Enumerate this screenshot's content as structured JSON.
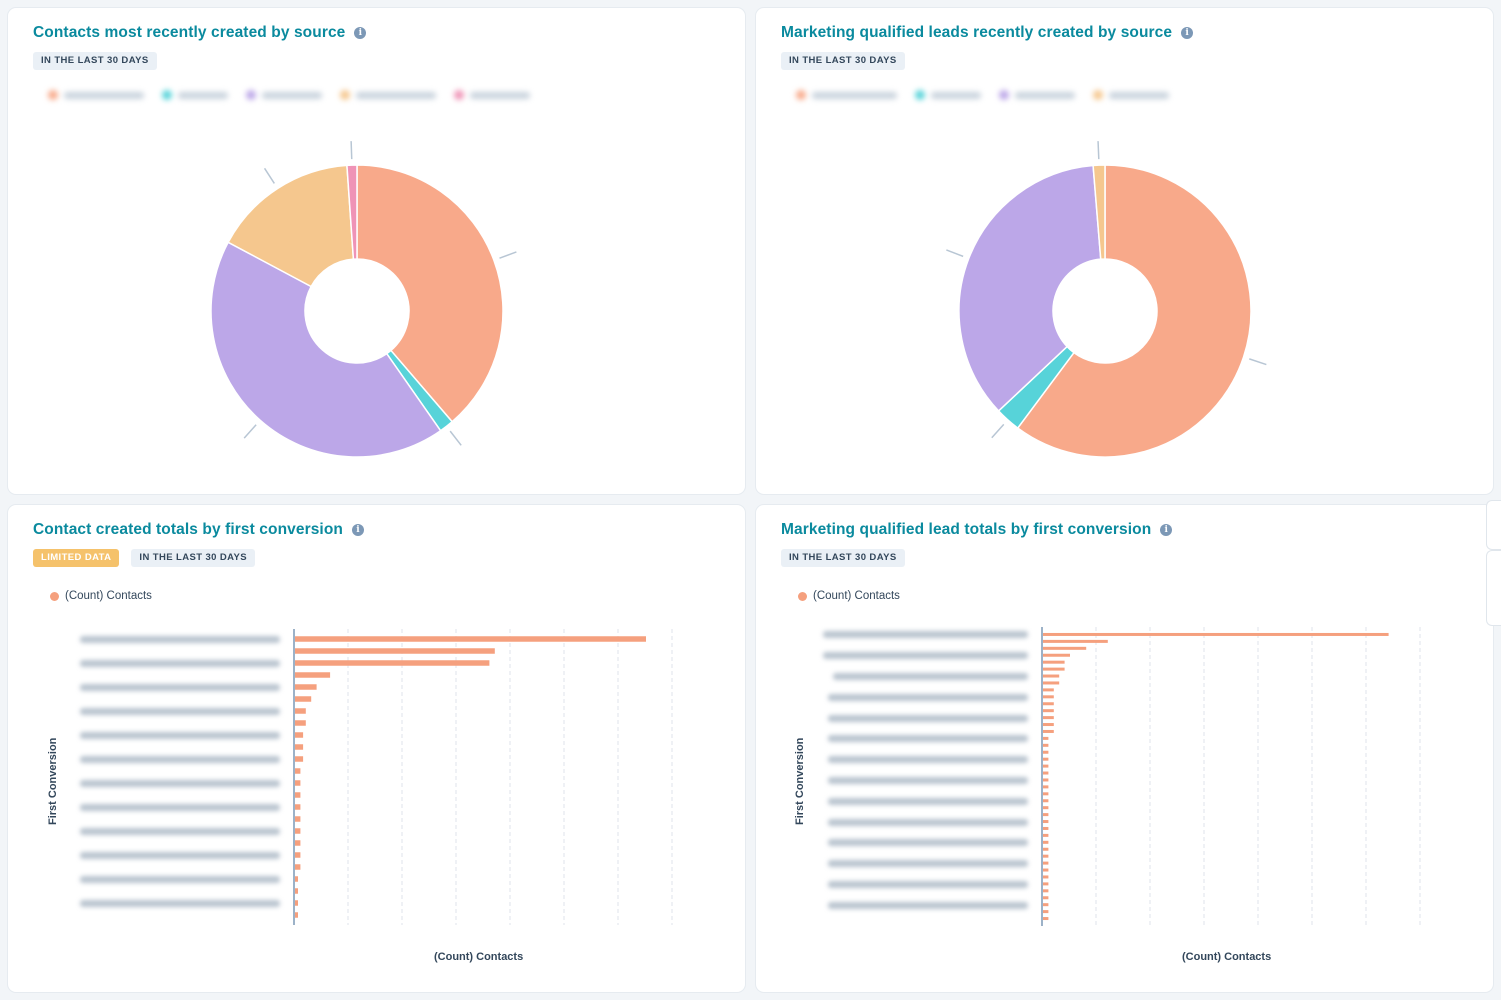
{
  "dashboard": {
    "cards": [
      {
        "title": "Contacts most recently created by source",
        "info_icon": "info-icon",
        "tags": [
          "IN THE LAST 30 DAYS"
        ],
        "chart_data": {
          "type": "pie",
          "donut": true,
          "legend_blurred": true,
          "slices": [
            {
              "value": 38.7,
              "color": "#f8a98a"
            },
            {
              "value": 1.6,
              "color": "#57d3d9"
            },
            {
              "value": 42.5,
              "color": "#bca7e8"
            },
            {
              "value": 16.1,
              "color": "#f5c78e"
            },
            {
              "value": 1.1,
              "color": "#ef93b6"
            }
          ]
        }
      },
      {
        "title": "Marketing qualified leads recently created by source",
        "info_icon": "info-icon",
        "tags": [
          "IN THE LAST 30 DAYS"
        ],
        "chart_data": {
          "type": "pie",
          "donut": true,
          "legend_blurred": true,
          "slices": [
            {
              "value": 60.2,
              "color": "#f8a98a"
            },
            {
              "value": 2.8,
              "color": "#57d3d9"
            },
            {
              "value": 35.7,
              "color": "#bca7e8"
            },
            {
              "value": 1.3,
              "color": "#f5c78e"
            }
          ]
        }
      },
      {
        "title": "Contact created totals by first conversion",
        "info_icon": "info-icon",
        "tags": [
          "LIMITED DATA",
          "IN THE LAST 30 DAYS"
        ],
        "legend": "(Count) Contacts",
        "y_axis_title": "First Conversion",
        "x_axis_title": "(Count) Contacts",
        "chart_data": {
          "type": "bar",
          "orientation": "horizontal",
          "series": [
            {
              "name": "(Count) Contacts",
              "color": "#f5a07e",
              "values": [
                130,
                74,
                72,
                13,
                8,
                6,
                4,
                4,
                3,
                3,
                3,
                2,
                2,
                2,
                2,
                2,
                2,
                2,
                2,
                2,
                1,
                1,
                1,
                1
              ]
            }
          ],
          "category_labels_blurred": true,
          "grid": true,
          "xlim": [
            0,
            140
          ]
        }
      },
      {
        "title": "Marketing qualified lead totals by first conversion",
        "info_icon": "info-icon",
        "tags": [
          "IN THE LAST 30 DAYS"
        ],
        "legend": "(Count) Contacts",
        "y_axis_title": "First Conversion",
        "x_axis_title": "(Count) Contacts",
        "chart_data": {
          "type": "bar",
          "orientation": "horizontal",
          "series": [
            {
              "name": "(Count) Contacts",
              "color": "#f5a07e",
              "values": [
                64,
                12,
                8,
                5,
                4,
                4,
                3,
                3,
                2,
                2,
                2,
                2,
                2,
                2,
                2,
                1,
                1,
                1,
                1,
                1,
                1,
                1,
                1,
                1,
                1,
                1,
                1,
                1,
                1,
                1,
                1,
                1,
                1,
                1,
                1,
                1,
                1,
                1,
                1,
                1,
                1,
                1
              ]
            }
          ],
          "category_labels_blurred": true,
          "grid": true,
          "xlim": [
            0,
            70
          ]
        }
      }
    ]
  }
}
